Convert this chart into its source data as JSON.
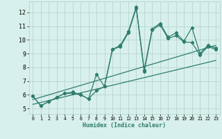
{
  "xlabel": "Humidex (Indice chaleur)",
  "x_values": [
    0,
    1,
    2,
    3,
    4,
    5,
    6,
    7,
    8,
    9,
    10,
    11,
    12,
    13,
    14,
    15,
    16,
    17,
    18,
    19,
    20,
    21,
    22,
    23
  ],
  "line1_y": [
    5.9,
    5.2,
    5.5,
    5.8,
    6.1,
    6.2,
    6.0,
    5.7,
    6.3,
    6.6,
    9.3,
    9.6,
    10.6,
    12.4,
    7.8,
    10.8,
    11.2,
    10.2,
    10.5,
    9.9,
    10.9,
    9.0,
    9.6,
    9.4
  ],
  "line2_y": [
    5.9,
    5.2,
    5.5,
    5.8,
    6.1,
    6.1,
    6.0,
    5.7,
    7.5,
    6.6,
    9.3,
    9.5,
    10.5,
    12.3,
    7.7,
    10.7,
    11.1,
    10.1,
    10.3,
    9.85,
    9.8,
    8.9,
    9.5,
    9.3
  ],
  "trend1_x": [
    0,
    23
  ],
  "trend1_y": [
    5.65,
    9.6
  ],
  "trend2_x": [
    0,
    23
  ],
  "trend2_y": [
    5.3,
    8.5
  ],
  "line_color": "#2e7d6e",
  "bg_color": "#d8f0ec",
  "grid_color": "#b8d4cf",
  "ylim": [
    4.6,
    12.8
  ],
  "xlim": [
    -0.5,
    23.5
  ],
  "yticks": [
    5,
    6,
    7,
    8,
    9,
    10,
    11,
    12
  ],
  "xticks": [
    0,
    1,
    2,
    3,
    4,
    5,
    6,
    7,
    8,
    9,
    10,
    11,
    12,
    13,
    14,
    15,
    16,
    17,
    18,
    19,
    20,
    21,
    22,
    23
  ],
  "xlabel_fontsize": 6.0,
  "tick_fontsize_x": 4.8,
  "tick_fontsize_y": 6.0
}
